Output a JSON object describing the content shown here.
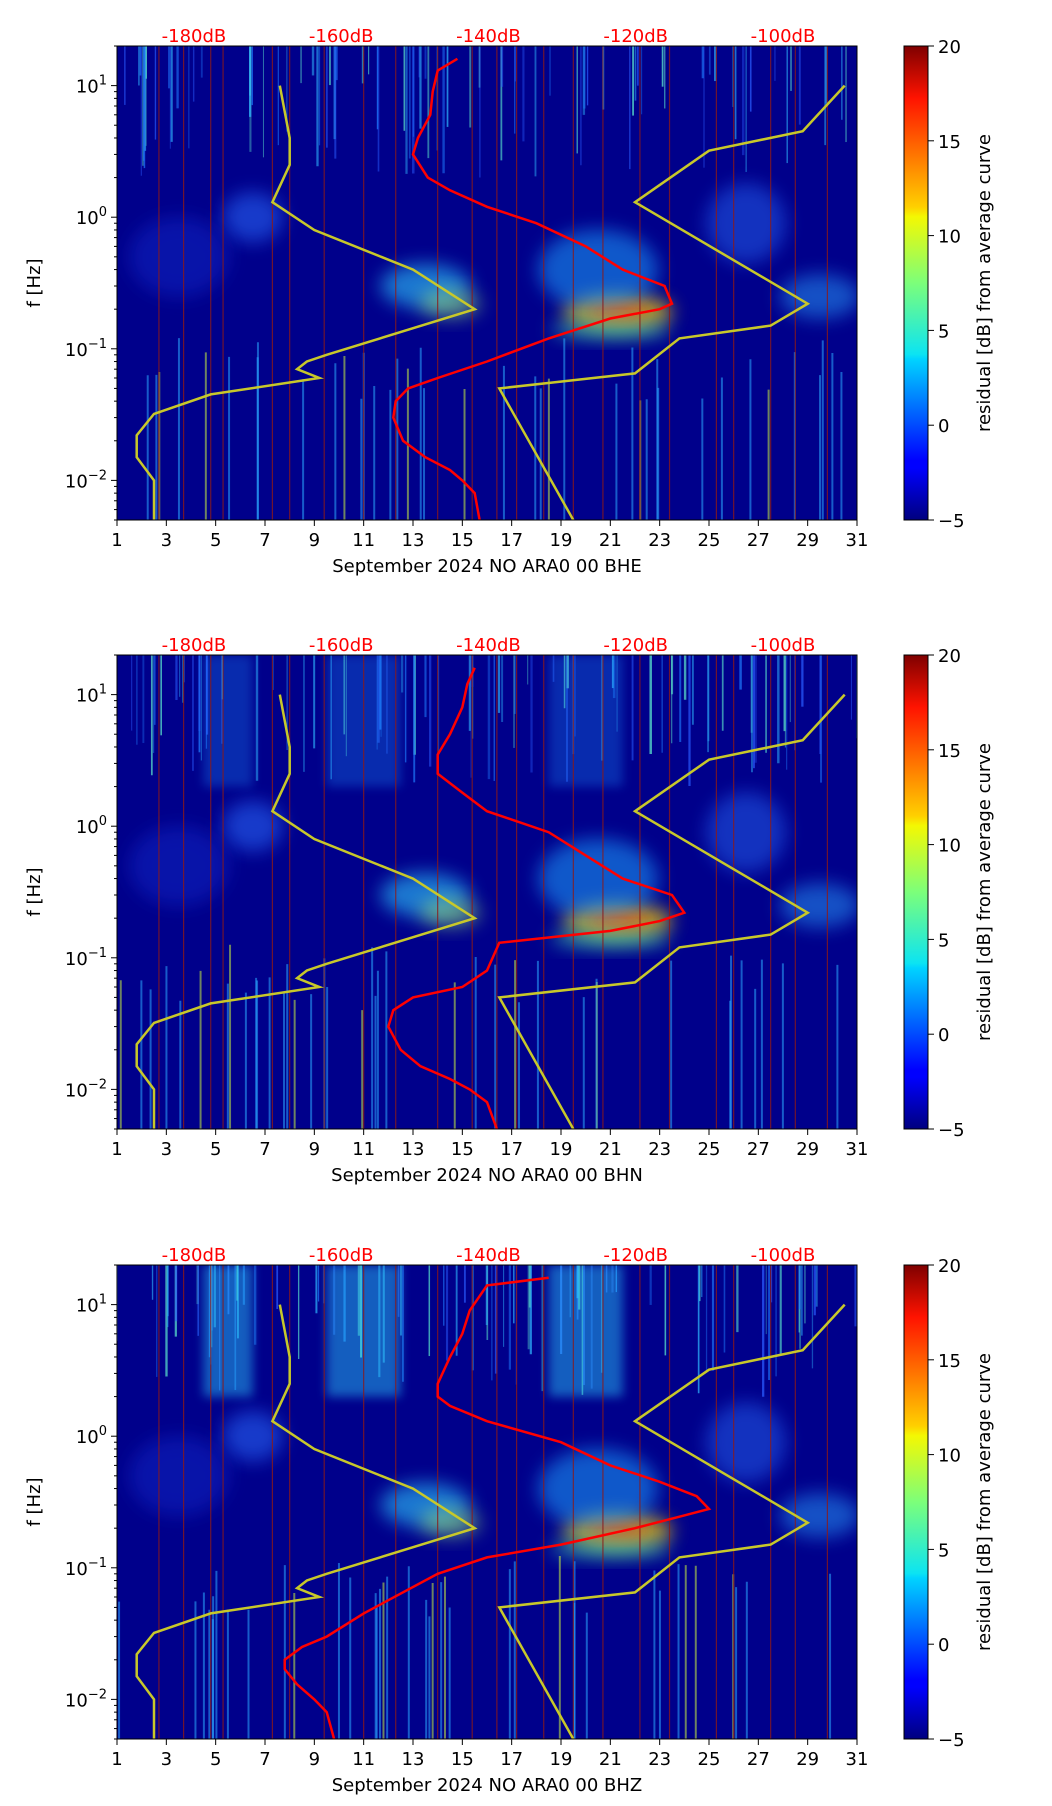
{
  "chart_data": [
    {
      "type": "heatmap",
      "title": "",
      "xlabel": "September 2024 NO ARA0 00 BHE",
      "ylabel": "f [Hz]",
      "xlim": [
        1,
        31
      ],
      "ylim": [
        0.005,
        20
      ],
      "yscale": "log",
      "x_ticks": [
        "1",
        "3",
        "5",
        "7",
        "9",
        "11",
        "13",
        "15",
        "17",
        "19",
        "21",
        "23",
        "25",
        "27",
        "29",
        "31"
      ],
      "y_ticks": [
        {
          "value": 0.01,
          "base": "10",
          "exp": "−2"
        },
        {
          "value": 0.1,
          "base": "10",
          "exp": "−1"
        },
        {
          "value": 1,
          "base": "10",
          "exp": "0"
        },
        {
          "value": 10,
          "base": "10",
          "exp": "1"
        }
      ],
      "db_scale_labels": [
        "-180dB",
        "-160dB",
        "-140dB",
        "-120dB",
        "-100dB"
      ],
      "colorbar": {
        "label": "residual [dB] from average curve",
        "range": [
          -5,
          20
        ],
        "ticks": [
          "−5",
          "0",
          "5",
          "10",
          "15",
          "20"
        ]
      },
      "red_curve": [
        [
          15.7,
          0.005
        ],
        [
          15.5,
          0.008
        ],
        [
          15.0,
          0.01
        ],
        [
          14.5,
          0.012
        ],
        [
          13.5,
          0.015
        ],
        [
          12.6,
          0.02
        ],
        [
          12.2,
          0.03
        ],
        [
          12.3,
          0.04
        ],
        [
          12.8,
          0.05
        ],
        [
          14.0,
          0.06
        ],
        [
          16.0,
          0.08
        ],
        [
          18.5,
          0.12
        ],
        [
          21.0,
          0.17
        ],
        [
          23.0,
          0.2
        ],
        [
          23.5,
          0.22
        ],
        [
          23.2,
          0.3
        ],
        [
          21.5,
          0.4
        ],
        [
          20.0,
          0.6
        ],
        [
          18.0,
          0.9
        ],
        [
          16.0,
          1.2
        ],
        [
          14.5,
          1.6
        ],
        [
          13.6,
          2.0
        ],
        [
          13.0,
          3.0
        ],
        [
          13.2,
          4.0
        ],
        [
          13.7,
          6.0
        ],
        [
          13.8,
          9.0
        ],
        [
          14.0,
          13.0
        ],
        [
          14.8,
          16.0
        ]
      ],
      "yellow_curve": [
        [
          2.5,
          0.005
        ],
        [
          2.5,
          0.01
        ],
        [
          1.8,
          0.015
        ],
        [
          1.8,
          0.022
        ],
        [
          2.5,
          0.032
        ],
        [
          4.8,
          0.045
        ],
        [
          9.2,
          0.06
        ],
        [
          8.3,
          0.07
        ],
        [
          8.7,
          0.08
        ],
        [
          9.5,
          0.09
        ],
        [
          15.5,
          0.2
        ],
        [
          13.0,
          0.4
        ],
        [
          9.0,
          0.8
        ],
        [
          7.3,
          1.3
        ],
        [
          8.0,
          2.5
        ],
        [
          8.0,
          4.0
        ],
        [
          7.6,
          10.0
        ],
        null,
        [
          19.5,
          0.005
        ],
        [
          16.5,
          0.05
        ],
        [
          22.0,
          0.065
        ],
        [
          23.8,
          0.12
        ],
        [
          27.5,
          0.15
        ],
        [
          29.0,
          0.22
        ],
        [
          22.0,
          1.3
        ],
        [
          25.0,
          3.2
        ],
        [
          28.8,
          4.5
        ],
        [
          30.5,
          10.0
        ]
      ],
      "vertical_lines_x": [
        2.7,
        3.7,
        4.8,
        5.3,
        7.3,
        8.0,
        9.4,
        11.0,
        12.3,
        14.0,
        15.4,
        16.4,
        17.2,
        18.3,
        19.5,
        20.7,
        22.2,
        23.4,
        25.3,
        26.0,
        27.5,
        28.5,
        29.8
      ]
    },
    {
      "type": "heatmap",
      "title": "",
      "xlabel": "September 2024 NO ARA0 00 BHN",
      "ylabel": "f [Hz]",
      "xlim": [
        1,
        31
      ],
      "ylim": [
        0.005,
        20
      ],
      "yscale": "log",
      "x_ticks": [
        "1",
        "3",
        "5",
        "7",
        "9",
        "11",
        "13",
        "15",
        "17",
        "19",
        "21",
        "23",
        "25",
        "27",
        "29",
        "31"
      ],
      "y_ticks": [
        {
          "value": 0.01,
          "base": "10",
          "exp": "−2"
        },
        {
          "value": 0.1,
          "base": "10",
          "exp": "−1"
        },
        {
          "value": 1,
          "base": "10",
          "exp": "0"
        },
        {
          "value": 10,
          "base": "10",
          "exp": "1"
        }
      ],
      "db_scale_labels": [
        "-180dB",
        "-160dB",
        "-140dB",
        "-120dB",
        "-100dB"
      ],
      "colorbar": {
        "label": "residual [dB] from average curve",
        "range": [
          -5,
          20
        ],
        "ticks": [
          "−5",
          "0",
          "5",
          "10",
          "15",
          "20"
        ]
      },
      "red_curve": [
        [
          16.4,
          0.005
        ],
        [
          16.0,
          0.008
        ],
        [
          15.3,
          0.01
        ],
        [
          14.5,
          0.012
        ],
        [
          13.3,
          0.015
        ],
        [
          12.5,
          0.02
        ],
        [
          12.0,
          0.03
        ],
        [
          12.2,
          0.04
        ],
        [
          13.0,
          0.05
        ],
        [
          15.0,
          0.06
        ],
        [
          16.0,
          0.08
        ],
        [
          16.5,
          0.13
        ],
        [
          21.0,
          0.16
        ],
        [
          23.0,
          0.19
        ],
        [
          24.0,
          0.22
        ],
        [
          23.5,
          0.3
        ],
        [
          21.5,
          0.4
        ],
        [
          20.0,
          0.6
        ],
        [
          18.5,
          0.9
        ],
        [
          16.0,
          1.3
        ],
        [
          15.0,
          1.8
        ],
        [
          14.0,
          2.5
        ],
        [
          14.0,
          3.5
        ],
        [
          14.5,
          5.0
        ],
        [
          15.0,
          8.0
        ],
        [
          15.2,
          12.0
        ],
        [
          15.5,
          16.0
        ]
      ],
      "yellow_curve": [
        [
          2.5,
          0.005
        ],
        [
          2.5,
          0.01
        ],
        [
          1.8,
          0.015
        ],
        [
          1.8,
          0.022
        ],
        [
          2.5,
          0.032
        ],
        [
          4.8,
          0.045
        ],
        [
          9.2,
          0.06
        ],
        [
          8.3,
          0.07
        ],
        [
          8.7,
          0.08
        ],
        [
          9.5,
          0.09
        ],
        [
          15.5,
          0.2
        ],
        [
          13.0,
          0.4
        ],
        [
          9.0,
          0.8
        ],
        [
          7.3,
          1.3
        ],
        [
          8.0,
          2.5
        ],
        [
          8.0,
          4.0
        ],
        [
          7.6,
          10.0
        ],
        null,
        [
          19.5,
          0.005
        ],
        [
          16.5,
          0.05
        ],
        [
          22.0,
          0.065
        ],
        [
          23.8,
          0.12
        ],
        [
          27.5,
          0.15
        ],
        [
          29.0,
          0.22
        ],
        [
          22.0,
          1.3
        ],
        [
          25.0,
          3.2
        ],
        [
          28.8,
          4.5
        ],
        [
          30.5,
          10.0
        ]
      ],
      "vertical_lines_x": [
        2.7,
        3.7,
        4.8,
        5.3,
        7.3,
        8.0,
        9.4,
        11.0,
        12.3,
        14.0,
        15.4,
        16.4,
        17.2,
        18.3,
        19.5,
        20.7,
        22.2,
        23.4,
        25.3,
        26.0,
        27.5,
        28.5,
        29.8
      ]
    },
    {
      "type": "heatmap",
      "title": "",
      "xlabel": "September 2024 NO ARA0 00 BHZ",
      "ylabel": "f [Hz]",
      "xlim": [
        1,
        31
      ],
      "ylim": [
        0.005,
        20
      ],
      "yscale": "log",
      "x_ticks": [
        "1",
        "3",
        "5",
        "7",
        "9",
        "11",
        "13",
        "15",
        "17",
        "19",
        "21",
        "23",
        "25",
        "27",
        "29",
        "31"
      ],
      "y_ticks": [
        {
          "value": 0.01,
          "base": "10",
          "exp": "−2"
        },
        {
          "value": 0.1,
          "base": "10",
          "exp": "−1"
        },
        {
          "value": 1,
          "base": "10",
          "exp": "0"
        },
        {
          "value": 10,
          "base": "10",
          "exp": "1"
        }
      ],
      "db_scale_labels": [
        "-180dB",
        "-160dB",
        "-140dB",
        "-120dB",
        "-100dB"
      ],
      "colorbar": {
        "label": "residual [dB] from average curve",
        "range": [
          -5,
          20
        ],
        "ticks": [
          "−5",
          "0",
          "5",
          "10",
          "15",
          "20"
        ]
      },
      "red_curve": [
        [
          9.8,
          0.005
        ],
        [
          9.5,
          0.008
        ],
        [
          9.0,
          0.01
        ],
        [
          8.3,
          0.013
        ],
        [
          7.8,
          0.017
        ],
        [
          7.8,
          0.02
        ],
        [
          8.5,
          0.025
        ],
        [
          9.5,
          0.03
        ],
        [
          11.0,
          0.045
        ],
        [
          14.0,
          0.09
        ],
        [
          16.0,
          0.12
        ],
        [
          19.0,
          0.15
        ],
        [
          22.0,
          0.2
        ],
        [
          24.0,
          0.25
        ],
        [
          25.0,
          0.28
        ],
        [
          24.5,
          0.35
        ],
        [
          23.0,
          0.45
        ],
        [
          21.0,
          0.6
        ],
        [
          19.0,
          0.9
        ],
        [
          16.0,
          1.3
        ],
        [
          14.5,
          1.7
        ],
        [
          14.0,
          2.0
        ],
        [
          14.0,
          2.5
        ],
        [
          14.5,
          4.0
        ],
        [
          15.0,
          6.0
        ],
        [
          15.3,
          9.0
        ],
        [
          16.0,
          14.0
        ],
        [
          18.5,
          16.0
        ]
      ],
      "yellow_curve": [
        [
          2.5,
          0.005
        ],
        [
          2.5,
          0.01
        ],
        [
          1.8,
          0.015
        ],
        [
          1.8,
          0.022
        ],
        [
          2.5,
          0.032
        ],
        [
          4.8,
          0.045
        ],
        [
          9.2,
          0.06
        ],
        [
          8.3,
          0.07
        ],
        [
          8.7,
          0.08
        ],
        [
          9.5,
          0.09
        ],
        [
          15.5,
          0.2
        ],
        [
          13.0,
          0.4
        ],
        [
          9.0,
          0.8
        ],
        [
          7.3,
          1.3
        ],
        [
          8.0,
          2.5
        ],
        [
          8.0,
          4.0
        ],
        [
          7.6,
          10.0
        ],
        null,
        [
          19.5,
          0.005
        ],
        [
          16.5,
          0.05
        ],
        [
          22.0,
          0.065
        ],
        [
          23.8,
          0.12
        ],
        [
          27.5,
          0.15
        ],
        [
          29.0,
          0.22
        ],
        [
          22.0,
          1.3
        ],
        [
          25.0,
          3.2
        ],
        [
          28.8,
          4.5
        ],
        [
          30.5,
          10.0
        ]
      ],
      "vertical_lines_x": [
        2.7,
        3.7,
        4.8,
        5.3,
        7.3,
        8.0,
        9.4,
        11.0,
        12.3,
        14.0,
        15.4,
        16.4,
        17.2,
        18.3,
        19.5,
        20.7,
        22.2,
        23.4,
        25.3,
        26.0,
        27.5,
        28.5,
        29.8
      ]
    }
  ],
  "colors": {
    "background": "#00008b",
    "red_curve": "#ff0000",
    "yellow_curve": "#c8c82a",
    "vertical_lines": "#8b1a1a",
    "db_labels": "#ff0000"
  }
}
